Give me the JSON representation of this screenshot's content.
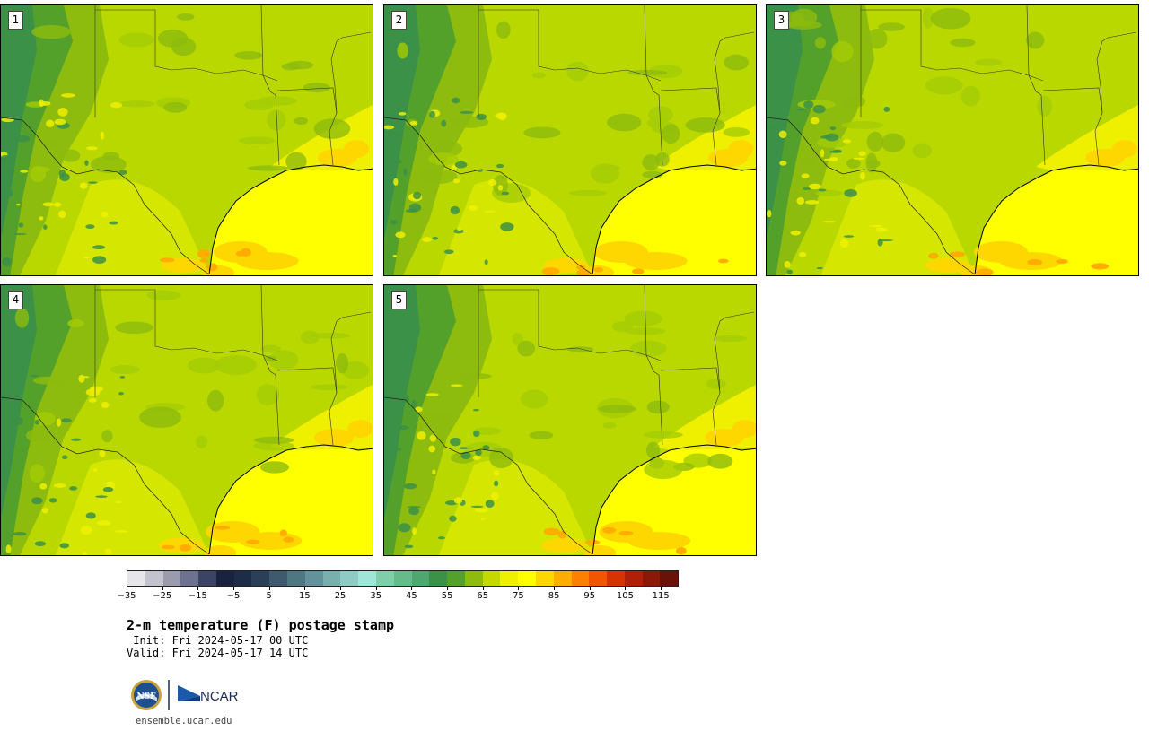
{
  "panels": [
    {
      "label": "1"
    },
    {
      "label": "2"
    },
    {
      "label": "3"
    },
    {
      "label": "4"
    },
    {
      "label": "5"
    }
  ],
  "colorbar": {
    "colors": [
      "#e6e6ea",
      "#c3c3cd",
      "#9a9cae",
      "#6e7290",
      "#3c4466",
      "#19223f",
      "#1c2c49",
      "#2a4059",
      "#3d5a6e",
      "#4f7683",
      "#64929b",
      "#7aafb0",
      "#8fcbc4",
      "#9fe6d8",
      "#7fcfaa",
      "#66bb8a",
      "#4ea76c",
      "#3b9147",
      "#53a02a",
      "#8dbb0e",
      "#c4d800",
      "#eef000",
      "#ffff00",
      "#ffd700",
      "#ffae00",
      "#ff8000",
      "#f25500",
      "#d53300",
      "#b01f07",
      "#8d1708",
      "#6b1208"
    ],
    "tick_labels": [
      "−35",
      "−25",
      "−15",
      "−5",
      "5",
      "15",
      "25",
      "35",
      "45",
      "55",
      "65",
      "75",
      "85",
      "95",
      "105",
      "115"
    ]
  },
  "title": "2-m temperature (F) postage stamp",
  "init_line": " Init: Fri 2024-05-17 00 UTC",
  "valid_line": "Valid: Fri 2024-05-17 14 UTC",
  "logos": {
    "nsf": "NSF",
    "ncar": "NCAR"
  },
  "url": "ensemble.ucar.edu"
}
